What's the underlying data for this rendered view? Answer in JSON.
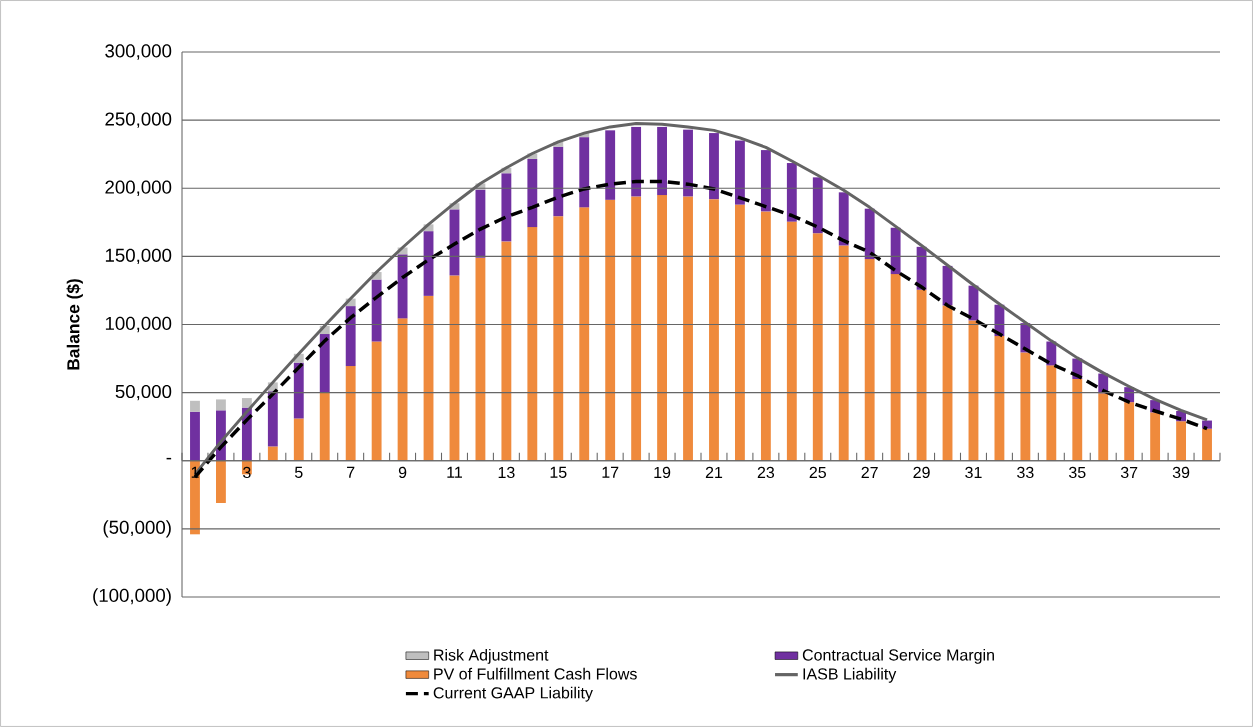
{
  "chart_data": {
    "type": "bar",
    "stacked": true,
    "ylabel": "Balance ($)",
    "categories": [
      "1",
      null,
      "3",
      null,
      "5",
      null,
      "7",
      null,
      "9",
      null,
      "11",
      null,
      "13",
      null,
      "15",
      null,
      "17",
      null,
      "19",
      null,
      "21",
      null,
      "23",
      null,
      "25",
      null,
      "27",
      null,
      "29",
      null,
      "31",
      null,
      "33",
      null,
      "35",
      null,
      "37",
      null,
      "39",
      null
    ],
    "ylim": [
      -100000,
      300000
    ],
    "yticks": [
      {
        "value": -100000,
        "label": "(100,000)"
      },
      {
        "value": -50000,
        "label": "(50,000)"
      },
      {
        "value": 0,
        "label": "-"
      },
      {
        "value": 50000,
        "label": "50,000"
      },
      {
        "value": 100000,
        "label": "100,000"
      },
      {
        "value": 150000,
        "label": "150,000"
      },
      {
        "value": 200000,
        "label": "200,000"
      },
      {
        "value": 250000,
        "label": "250,000"
      },
      {
        "value": 300000,
        "label": "300,000"
      }
    ],
    "grid": "y",
    "legend": "bottom",
    "series": [
      {
        "name": "PV of Fulfillment Cash Flows",
        "color": "#ef8a3c",
        "values": [
          -54000,
          -31000,
          -10000,
          10500,
          31000,
          50000,
          69500,
          87500,
          104500,
          121000,
          136000,
          149000,
          161000,
          171500,
          179500,
          186000,
          191500,
          194000,
          195000,
          194000,
          192000,
          188000,
          183000,
          175500,
          167000,
          158000,
          148000,
          137000,
          125500,
          114000,
          103000,
          91500,
          79500,
          70000,
          60000,
          49500,
          43000,
          35500,
          29000,
          23500
        ]
      },
      {
        "name": "Contractual Service Margin",
        "color": "#7030a0",
        "values": [
          36000,
          37000,
          39000,
          40500,
          41000,
          43000,
          44000,
          45500,
          47000,
          47500,
          48500,
          50000,
          50000,
          50000,
          51000,
          51500,
          51000,
          51000,
          50000,
          49000,
          48500,
          47000,
          45000,
          43000,
          41000,
          39000,
          37000,
          34000,
          31500,
          29000,
          25500,
          23000,
          21500,
          17500,
          15000,
          14500,
          11000,
          9000,
          7500,
          6000
        ]
      },
      {
        "name": "Risk Adjustment",
        "color": "#bfbfbf",
        "values": [
          8000,
          8000,
          7000,
          6500,
          6500,
          6000,
          5500,
          5500,
          5000,
          5000,
          4500,
          4500,
          4000,
          4000,
          3500,
          3000,
          null,
          null,
          null,
          null,
          null,
          null,
          null,
          null,
          null,
          null,
          null,
          null,
          null,
          null,
          null,
          null,
          null,
          null,
          null,
          null,
          null,
          null,
          null,
          null
        ]
      },
      {
        "name": "IASB Liability",
        "type": "line",
        "color": "#646464",
        "line_style": "solid",
        "values": [
          -10000,
          14000,
          36000,
          57500,
          78500,
          99000,
          119000,
          138500,
          156500,
          173500,
          189000,
          203500,
          215000,
          225500,
          234000,
          240500,
          245000,
          247500,
          247000,
          245000,
          242500,
          237000,
          230000,
          220000,
          209500,
          198500,
          186000,
          172000,
          158000,
          143500,
          129000,
          115000,
          101500,
          88000,
          75500,
          64500,
          54500,
          45000,
          37000,
          30000
        ]
      },
      {
        "name": "Current GAAP Liability",
        "type": "line",
        "color": "#000000",
        "line_style": "dashed",
        "values": [
          -12000,
          10000,
          30000,
          49000,
          68500,
          88000,
          105000,
          120000,
          134500,
          147500,
          159000,
          170000,
          179000,
          186000,
          193500,
          199500,
          203000,
          205000,
          205000,
          203000,
          199500,
          193000,
          186500,
          180000,
          171500,
          161500,
          153000,
          139500,
          127500,
          114000,
          104000,
          93000,
          82000,
          71000,
          62500,
          51500,
          43000,
          36500,
          30500,
          23500
        ]
      }
    ]
  }
}
